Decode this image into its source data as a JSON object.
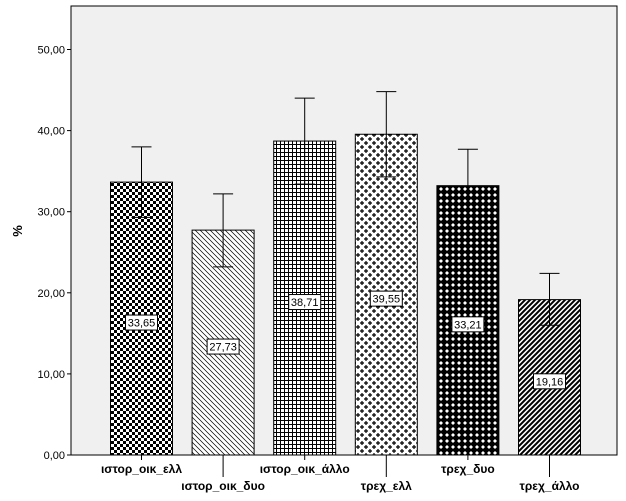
{
  "chart_data": {
    "type": "bar",
    "categories": [
      "ιστορ_οικ_ελλ",
      "ιστορ_οικ_δυο",
      "ιστορ_οικ_άλλο",
      "τρεχ_ελλ",
      "τρεχ_δυο",
      "τρεχ_άλλο"
    ],
    "values": [
      33.65,
      27.73,
      38.71,
      39.55,
      33.21,
      19.16
    ],
    "value_labels": [
      "33,65",
      "27,73",
      "38,71",
      "39,55",
      "33,21",
      "19,16"
    ],
    "error_low": [
      29.3,
      23.2,
      33.4,
      34.3,
      28.7,
      16.0
    ],
    "error_high": [
      38.0,
      32.2,
      44.0,
      44.8,
      37.7,
      22.4
    ],
    "ylim": [
      0,
      53.2
    ],
    "yticks": [
      0,
      10,
      20,
      30,
      40,
      50
    ],
    "ytick_labels": [
      "0,00",
      "10,00",
      "20,00",
      "30,00",
      "40,00",
      "50,00"
    ],
    "ylabel": "%",
    "xlabel": "",
    "title": "",
    "grid": false,
    "plot_background": "#f0f0f0",
    "bar_patterns": [
      "checker",
      "diagonal-down",
      "grid",
      "cross",
      "dot-diamond",
      "diagonal-up"
    ]
  }
}
